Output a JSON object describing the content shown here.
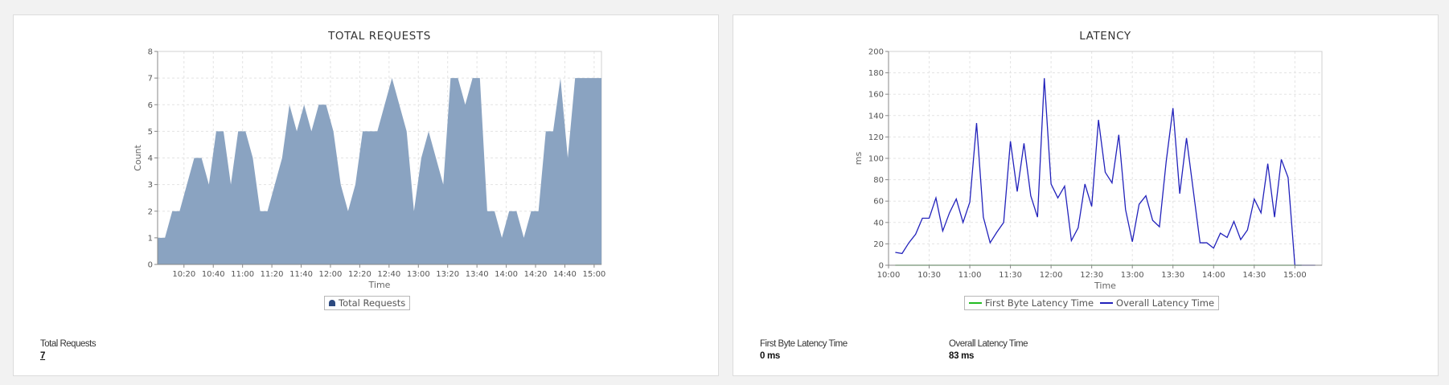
{
  "panels": {
    "requests": {
      "stat_label": "Total Requests",
      "stat_value": "7",
      "legend": [
        "Total Requests"
      ]
    },
    "latency": {
      "stat1_label": "First Byte Latency Time",
      "stat1_value": "0 ms",
      "stat2_label": "Overall Latency Time",
      "stat2_value": "83 ms",
      "legend": [
        "First Byte Latency Time",
        "Overall Latency Time"
      ]
    }
  },
  "colors": {
    "area_fill": "#8aa3c1",
    "overall_line": "#2222bb",
    "first_byte_line": "#22bb22"
  },
  "chart_data": [
    {
      "type": "area",
      "title": "TOTAL REQUESTS",
      "xlabel": "Time",
      "ylabel": "Count",
      "xlim": [
        "10:02",
        "15:05"
      ],
      "ylim": [
        0,
        8
      ],
      "yticks": [
        0,
        1,
        2,
        3,
        4,
        5,
        6,
        7,
        8
      ],
      "xticks": [
        "10:20",
        "10:40",
        "11:00",
        "11:20",
        "11:40",
        "12:00",
        "12:20",
        "12:40",
        "13:00",
        "13:20",
        "13:40",
        "14:00",
        "14:20",
        "14:40",
        "15:00"
      ],
      "grid": true,
      "legend_position": "bottom",
      "series": [
        {
          "name": "Total Requests",
          "x": [
            "10:02",
            "10:07",
            "10:12",
            "10:17",
            "10:22",
            "10:27",
            "10:32",
            "10:37",
            "10:42",
            "10:47",
            "10:52",
            "10:57",
            "11:02",
            "11:07",
            "11:12",
            "11:17",
            "11:22",
            "11:27",
            "11:32",
            "11:37",
            "11:42",
            "11:47",
            "11:52",
            "11:57",
            "12:02",
            "12:07",
            "12:12",
            "12:17",
            "12:22",
            "12:27",
            "12:32",
            "12:37",
            "12:42",
            "12:47",
            "12:52",
            "12:57",
            "13:02",
            "13:07",
            "13:12",
            "13:17",
            "13:22",
            "13:27",
            "13:32",
            "13:37",
            "13:42",
            "13:47",
            "13:52",
            "13:57",
            "14:02",
            "14:07",
            "14:12",
            "14:17",
            "14:22",
            "14:27",
            "14:32",
            "14:37",
            "14:42",
            "14:47",
            "14:52",
            "14:57",
            "15:02",
            "15:05"
          ],
          "values": [
            1,
            1,
            2,
            2,
            3,
            4,
            4,
            3,
            5,
            5,
            3,
            5,
            5,
            4,
            2,
            2,
            3,
            4,
            6,
            5,
            6,
            5,
            6,
            6,
            5,
            3,
            2,
            3,
            5,
            5,
            5,
            6,
            7,
            6,
            5,
            2,
            4,
            5,
            4,
            3,
            7,
            7,
            6,
            7,
            7,
            2,
            2,
            1,
            2,
            2,
            1,
            2,
            2,
            5,
            5,
            7,
            4,
            7,
            7,
            7,
            7,
            7
          ]
        }
      ]
    },
    {
      "type": "line",
      "title": "LATENCY",
      "xlabel": "Time",
      "ylabel": "ms",
      "xlim": [
        "10:00",
        "15:20"
      ],
      "ylim": [
        0,
        200
      ],
      "yticks": [
        0,
        20,
        40,
        60,
        80,
        100,
        120,
        140,
        160,
        180,
        200
      ],
      "xticks": [
        "10:00",
        "10:30",
        "11:00",
        "11:30",
        "12:00",
        "12:30",
        "13:00",
        "13:30",
        "14:00",
        "14:30",
        "15:00"
      ],
      "grid": true,
      "legend_position": "bottom",
      "series": [
        {
          "name": "First Byte Latency Time",
          "x": [
            "10:05",
            "15:05"
          ],
          "values": [
            0,
            0
          ]
        },
        {
          "name": "Overall Latency Time",
          "x": [
            "10:05",
            "10:10",
            "10:15",
            "10:20",
            "10:25",
            "10:30",
            "10:35",
            "10:40",
            "10:45",
            "10:50",
            "10:55",
            "11:00",
            "11:05",
            "11:10",
            "11:15",
            "11:20",
            "11:25",
            "11:30",
            "11:35",
            "11:40",
            "11:45",
            "11:50",
            "11:55",
            "12:00",
            "12:05",
            "12:10",
            "12:15",
            "12:20",
            "12:25",
            "12:30",
            "12:35",
            "12:40",
            "12:45",
            "12:50",
            "12:55",
            "13:00",
            "13:05",
            "13:10",
            "13:15",
            "13:20",
            "13:25",
            "13:30",
            "13:35",
            "13:40",
            "13:45",
            "13:50",
            "13:55",
            "14:00",
            "14:05",
            "14:10",
            "14:15",
            "14:20",
            "14:25",
            "14:30",
            "14:35",
            "14:40",
            "14:45",
            "14:50",
            "14:55",
            "15:00",
            "15:05",
            "15:10",
            "15:15"
          ],
          "values": [
            12,
            11,
            21,
            29,
            44,
            44,
            63,
            32,
            49,
            62,
            40,
            59,
            133,
            45,
            21,
            31,
            40,
            116,
            69,
            114,
            65,
            45,
            175,
            76,
            63,
            74,
            23,
            35,
            76,
            55,
            136,
            87,
            77,
            122,
            52,
            22,
            57,
            65,
            42,
            36,
            97,
            147,
            67,
            119,
            70,
            21,
            21,
            16,
            30,
            26,
            41,
            24,
            33,
            62,
            49,
            95,
            45,
            99,
            82,
            0,
            0,
            0,
            0
          ]
        }
      ]
    }
  ]
}
